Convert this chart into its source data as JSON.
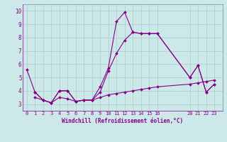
{
  "xlabel": "Windchill (Refroidissement éolien,°C)",
  "background_color": "#cce8e8",
  "line_color": "#880088",
  "grid_color": "#aacccc",
  "xlim": [
    -0.5,
    24
  ],
  "ylim": [
    2.5,
    10.5
  ],
  "xticks": [
    0,
    1,
    2,
    3,
    4,
    5,
    6,
    7,
    8,
    9,
    10,
    11,
    12,
    13,
    14,
    15,
    16,
    20,
    21,
    22,
    23
  ],
  "yticks": [
    3,
    4,
    5,
    6,
    7,
    8,
    9,
    10
  ],
  "series1_x": [
    0,
    1,
    2,
    3,
    4,
    5,
    6,
    7,
    8,
    9,
    10,
    11,
    12,
    13,
    14,
    15,
    16,
    20,
    21,
    22,
    23
  ],
  "series1_y": [
    5.6,
    3.9,
    3.3,
    3.1,
    4.0,
    4.0,
    3.2,
    3.3,
    3.3,
    4.3,
    5.7,
    9.2,
    9.9,
    8.4,
    8.3,
    8.3,
    8.3,
    5.0,
    5.9,
    3.9,
    4.5
  ],
  "series2_x": [
    1,
    2,
    3,
    4,
    5,
    6,
    7,
    8,
    9,
    10,
    11,
    12,
    13,
    14,
    15,
    16,
    20,
    21,
    22,
    23
  ],
  "series2_y": [
    3.9,
    3.3,
    3.1,
    4.0,
    4.0,
    3.2,
    3.3,
    3.3,
    3.9,
    5.5,
    6.8,
    7.8,
    8.4,
    8.3,
    8.3,
    8.3,
    5.0,
    5.9,
    3.9,
    4.5
  ],
  "series3_x": [
    1,
    2,
    3,
    4,
    5,
    6,
    7,
    8,
    9,
    10,
    11,
    12,
    13,
    14,
    15,
    16,
    20,
    21,
    22,
    23
  ],
  "series3_y": [
    3.5,
    3.3,
    3.1,
    3.5,
    3.4,
    3.2,
    3.3,
    3.3,
    3.5,
    3.7,
    3.8,
    3.9,
    4.0,
    4.1,
    4.2,
    4.3,
    4.5,
    4.6,
    4.7,
    4.8
  ]
}
